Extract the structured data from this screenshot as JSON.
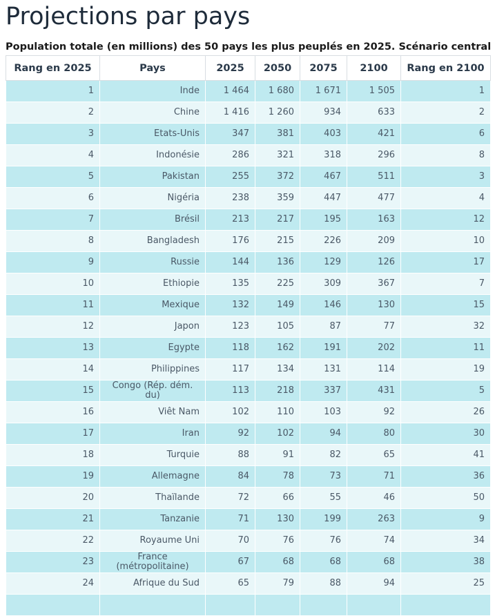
{
  "title": "Projections par pays",
  "subtitle": "Population totale (en millions) des 50 pays les plus peuplés en 2025. Scénario central",
  "table": {
    "headers": [
      "Rang en 2025",
      "Pays",
      "2025",
      "2050",
      "2075",
      "2100",
      "Rang en 2100"
    ],
    "rows": [
      {
        "rang2025": "1",
        "pays": "Inde",
        "v2025": "1 464",
        "v2050": "1 680",
        "v2075": "1 671",
        "v2100": "1 505",
        "rang2100": "1"
      },
      {
        "rang2025": "2",
        "pays": "Chine",
        "v2025": "1 416",
        "v2050": "1 260",
        "v2075": "934",
        "v2100": "633",
        "rang2100": "2"
      },
      {
        "rang2025": "3",
        "pays": "Etats-Unis",
        "v2025": "347",
        "v2050": "381",
        "v2075": "403",
        "v2100": "421",
        "rang2100": "6"
      },
      {
        "rang2025": "4",
        "pays": "Indonésie",
        "v2025": "286",
        "v2050": "321",
        "v2075": "318",
        "v2100": "296",
        "rang2100": "8"
      },
      {
        "rang2025": "5",
        "pays": "Pakistan",
        "v2025": "255",
        "v2050": "372",
        "v2075": "467",
        "v2100": "511",
        "rang2100": "3"
      },
      {
        "rang2025": "6",
        "pays": "Nigéria",
        "v2025": "238",
        "v2050": "359",
        "v2075": "447",
        "v2100": "477",
        "rang2100": "4"
      },
      {
        "rang2025": "7",
        "pays": "Brésil",
        "v2025": "213",
        "v2050": "217",
        "v2075": "195",
        "v2100": "163",
        "rang2100": "12"
      },
      {
        "rang2025": "8",
        "pays": "Bangladesh",
        "v2025": "176",
        "v2050": "215",
        "v2075": "226",
        "v2100": "209",
        "rang2100": "10"
      },
      {
        "rang2025": "9",
        "pays": "Russie",
        "v2025": "144",
        "v2050": "136",
        "v2075": "129",
        "v2100": "126",
        "rang2100": "17"
      },
      {
        "rang2025": "10",
        "pays": "Ethiopie",
        "v2025": "135",
        "v2050": "225",
        "v2075": "309",
        "v2100": "367",
        "rang2100": "7"
      },
      {
        "rang2025": "11",
        "pays": "Mexique",
        "v2025": "132",
        "v2050": "149",
        "v2075": "146",
        "v2100": "130",
        "rang2100": "15"
      },
      {
        "rang2025": "12",
        "pays": "Japon",
        "v2025": "123",
        "v2050": "105",
        "v2075": "87",
        "v2100": "77",
        "rang2100": "32"
      },
      {
        "rang2025": "13",
        "pays": "Egypte",
        "v2025": "118",
        "v2050": "162",
        "v2075": "191",
        "v2100": "202",
        "rang2100": "11"
      },
      {
        "rang2025": "14",
        "pays": "Philippines",
        "v2025": "117",
        "v2050": "134",
        "v2075": "131",
        "v2100": "114",
        "rang2100": "19"
      },
      {
        "rang2025": "15",
        "pays": "Congo (Rép. dém. du)",
        "v2025": "113",
        "v2050": "218",
        "v2075": "337",
        "v2100": "431",
        "rang2100": "5"
      },
      {
        "rang2025": "16",
        "pays": "Viêt Nam",
        "v2025": "102",
        "v2050": "110",
        "v2075": "103",
        "v2100": "92",
        "rang2100": "26"
      },
      {
        "rang2025": "17",
        "pays": "Iran",
        "v2025": "92",
        "v2050": "102",
        "v2075": "94",
        "v2100": "80",
        "rang2100": "30"
      },
      {
        "rang2025": "18",
        "pays": "Turquie",
        "v2025": "88",
        "v2050": "91",
        "v2075": "82",
        "v2100": "65",
        "rang2100": "41"
      },
      {
        "rang2025": "19",
        "pays": "Allemagne",
        "v2025": "84",
        "v2050": "78",
        "v2075": "73",
        "v2100": "71",
        "rang2100": "36"
      },
      {
        "rang2025": "20",
        "pays": "Thaïlande",
        "v2025": "72",
        "v2050": "66",
        "v2075": "55",
        "v2100": "46",
        "rang2100": "50"
      },
      {
        "rang2025": "21",
        "pays": "Tanzanie",
        "v2025": "71",
        "v2050": "130",
        "v2075": "199",
        "v2100": "263",
        "rang2100": "9"
      },
      {
        "rang2025": "22",
        "pays": "Royaume Uni",
        "v2025": "70",
        "v2050": "76",
        "v2075": "76",
        "v2100": "74",
        "rang2100": "34"
      },
      {
        "rang2025": "23",
        "pays": "France (métropolitaine)",
        "v2025": "67",
        "v2050": "68",
        "v2075": "68",
        "v2100": "68",
        "rang2100": "38"
      },
      {
        "rang2025": "24",
        "pays": "Afrique du Sud",
        "v2025": "65",
        "v2050": "79",
        "v2075": "88",
        "v2100": "94",
        "rang2100": "25"
      },
      {
        "rang2025": "",
        "pays": "",
        "v2025": "",
        "v2050": "",
        "v2075": "",
        "v2100": "",
        "rang2100": ""
      }
    ]
  },
  "colors": {
    "row_odd": "#bfeaf0",
    "row_even": "#e9f7f9",
    "header_border": "#d8dde2",
    "title": "#1e2b3a"
  }
}
